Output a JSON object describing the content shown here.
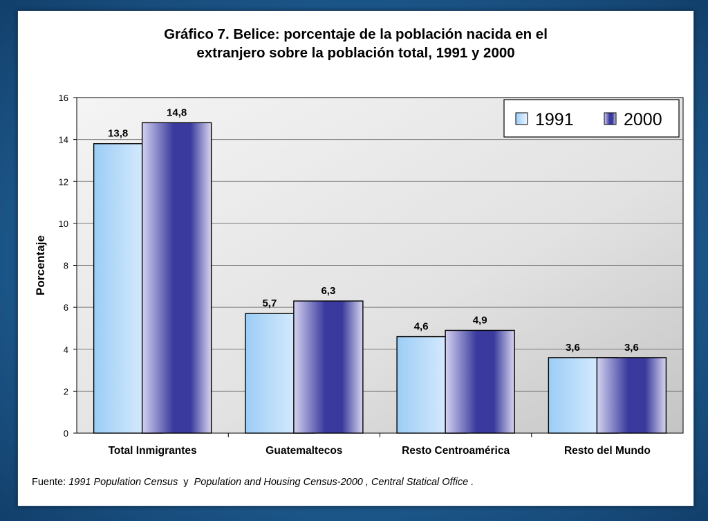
{
  "chart_data": {
    "type": "bar",
    "title_line1": "Gráfico 7. Belice: porcentaje de la población nacida en el",
    "title_line2": "extranjero sobre la población total, 1991 y 2000",
    "ylabel": "Porcentaje",
    "xlabel": "",
    "ylim": [
      0,
      16
    ],
    "yticks": [
      0,
      2,
      4,
      6,
      8,
      10,
      12,
      14,
      16
    ],
    "categories": [
      "Total Inmigrantes",
      "Guatemaltecos",
      "Resto Centroamérica",
      "Resto del Mundo"
    ],
    "series": [
      {
        "name": "1991",
        "values": [
          13.8,
          5.7,
          4.6,
          3.6
        ],
        "labels": [
          "13,8",
          "5,7",
          "4,6",
          "3,6"
        ],
        "color": "#a9d3f7"
      },
      {
        "name": "2000",
        "values": [
          14.8,
          6.3,
          4.9,
          3.6
        ],
        "labels": [
          "14,8",
          "6,3",
          "4,9",
          "3,6"
        ],
        "color": "#3b3b9c"
      }
    ],
    "grid": true,
    "legend_position": "top-right"
  },
  "source": {
    "prefix": "Fuente: ",
    "census1991": "1991 Population Census",
    "connector": "  y  ",
    "census2000": "Population and Housing Census-2000",
    "office": " , Central Statical Office ."
  }
}
